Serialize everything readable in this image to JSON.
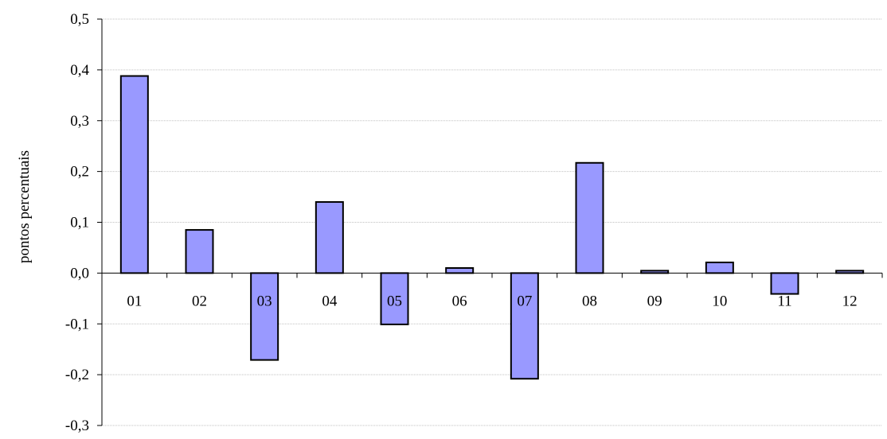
{
  "chart_data": {
    "type": "bar",
    "categories": [
      "01",
      "02",
      "03",
      "04",
      "05",
      "06",
      "07",
      "08",
      "09",
      "10",
      "11",
      "12"
    ],
    "values": [
      0.388,
      0.085,
      -0.171,
      0.14,
      -0.101,
      0.01,
      -0.208,
      0.217,
      0.004,
      0.021,
      -0.041,
      0.004
    ],
    "ylabel": "pontos percentuais",
    "ylim": [
      -0.3,
      0.5
    ],
    "yticks": [
      0.5,
      0.4,
      0.3,
      0.2,
      0.1,
      0.0,
      -0.1,
      -0.2,
      -0.3
    ],
    "ytick_labels": [
      "0,5",
      "0,4",
      "0,3",
      "0,2",
      "0,1",
      "0,0",
      "-0,1",
      "-0,2",
      "-0,3"
    ],
    "grid": true,
    "bar_color": "#9999FF",
    "bar_edge_color": "#000000",
    "grid_color": "#C0C0C0"
  }
}
